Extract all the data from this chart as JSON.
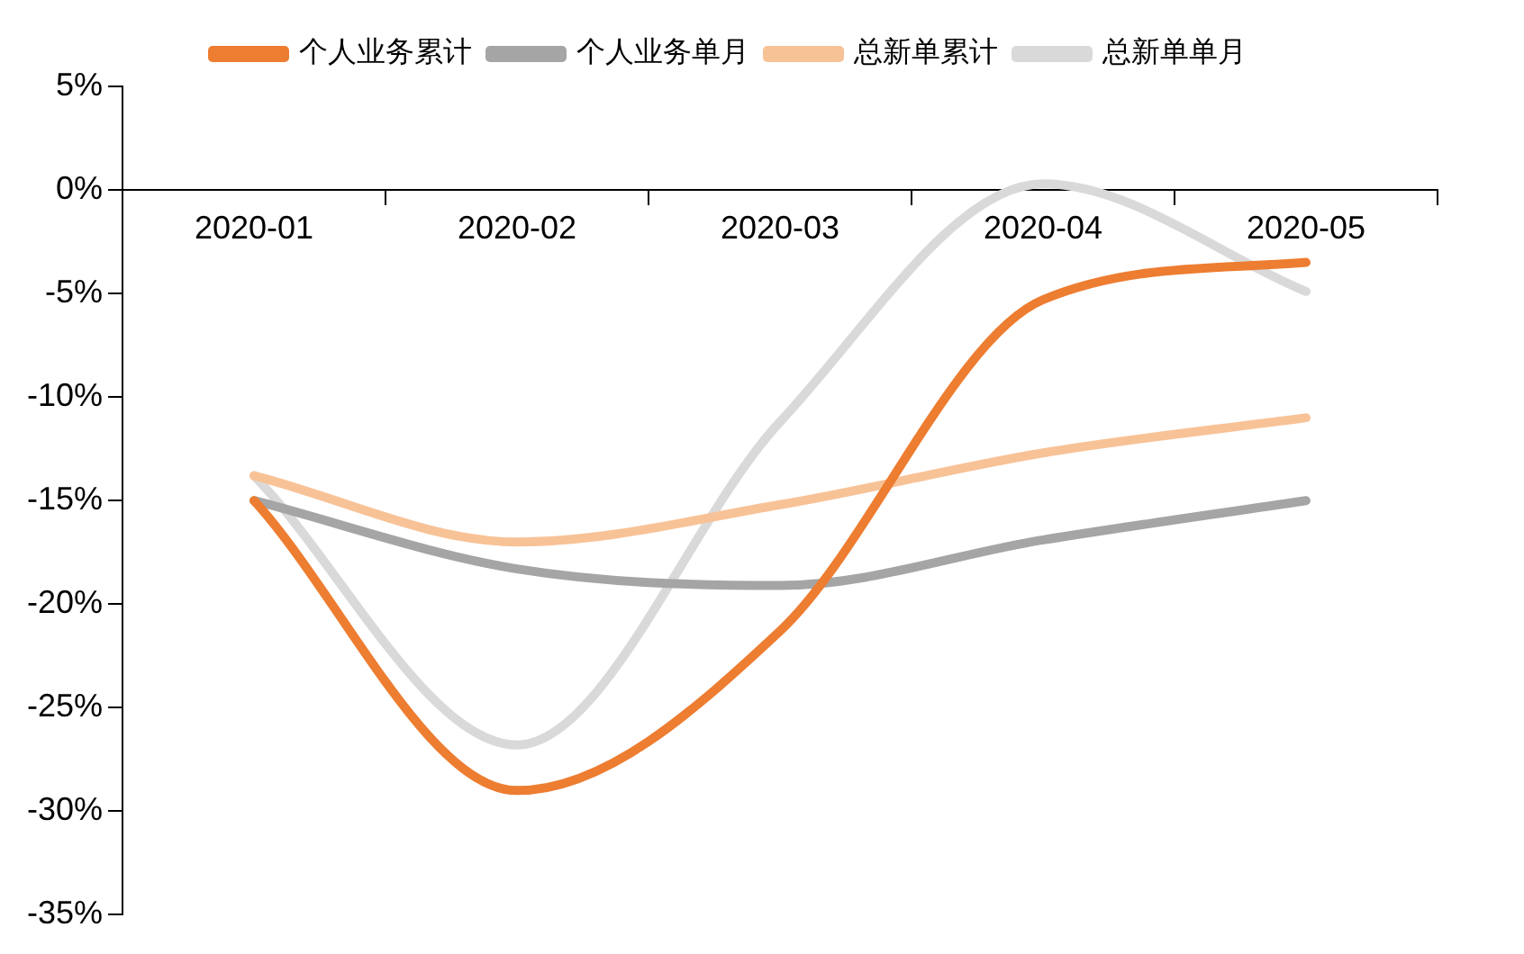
{
  "chart_data": {
    "type": "line",
    "categories": [
      "2020-01",
      "2020-02",
      "2020-03",
      "2020-04",
      "2020-05"
    ],
    "series": [
      {
        "name": "个人业务累计",
        "color": "#ed7d31",
        "values": [
          -15,
          -29,
          -21.3,
          -5.3,
          -3.5
        ]
      },
      {
        "name": "个人业务单月",
        "color": "#a5a5a5",
        "values": [
          -15,
          -18.3,
          -19.1,
          -16.9,
          -15
        ]
      },
      {
        "name": "总新单累计",
        "color": "#f8c297",
        "values": [
          -13.8,
          -17,
          -15.2,
          -12.7,
          -11
        ]
      },
      {
        "name": "总新单单月",
        "color": "#d9d9d9",
        "values": [
          -13.8,
          -26.8,
          -11.2,
          0.3,
          -4.9
        ]
      }
    ],
    "ylim": [
      -35,
      5
    ],
    "yticks": [
      {
        "value": -35,
        "label": "-35%"
      },
      {
        "value": -30,
        "label": "-30%"
      },
      {
        "value": -25,
        "label": "-25%"
      },
      {
        "value": -20,
        "label": "-20%"
      },
      {
        "value": -15,
        "label": "-15%"
      },
      {
        "value": -10,
        "label": "-10%"
      },
      {
        "value": -5,
        "label": "-5%"
      },
      {
        "value": 0,
        "label": "0%"
      },
      {
        "value": 5,
        "label": "5%"
      }
    ],
    "grid": false,
    "legend": "top",
    "marker": "none",
    "line_style": "solid"
  }
}
